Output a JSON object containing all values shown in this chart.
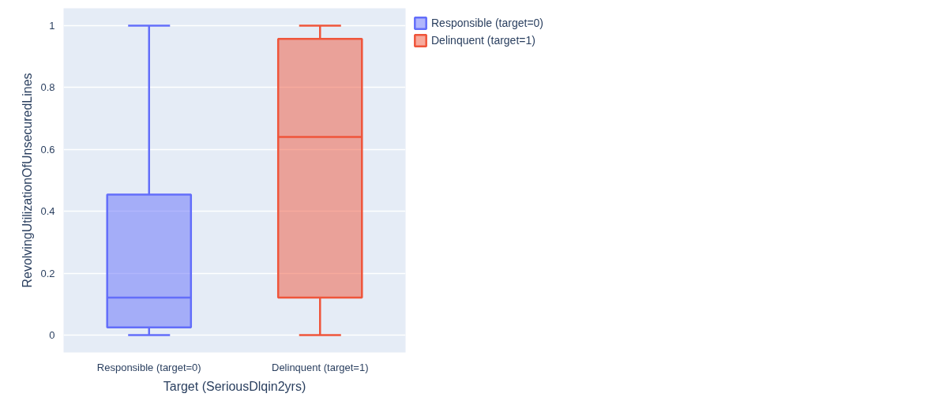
{
  "chart_data": {
    "type": "box",
    "xlabel": "Target (SeriousDlqin2yrs)",
    "ylabel": "RevolvingUtilizationOfUnsecuredLines",
    "categories": [
      "Responsible (target=0)",
      "Delinquent (target=1)"
    ],
    "series": [
      {
        "name": "Responsible (target=0)",
        "color": "#636efa",
        "boxes": [
          {
            "low": 0,
            "q1": 0.025,
            "median": 0.121,
            "q3": 0.454,
            "high": 1
          },
          null
        ]
      },
      {
        "name": "Delinquent (target=1)",
        "color": "#ef553b",
        "boxes": [
          null,
          {
            "low": 0,
            "q1": 0.121,
            "median": 0.64,
            "q3": 0.957,
            "high": 1
          }
        ]
      }
    ],
    "ylim": [
      -0.056,
      1.056
    ],
    "yticks": [
      0,
      0.2,
      0.4,
      0.6,
      0.8,
      1
    ],
    "grid": "y",
    "legend": "top right"
  }
}
